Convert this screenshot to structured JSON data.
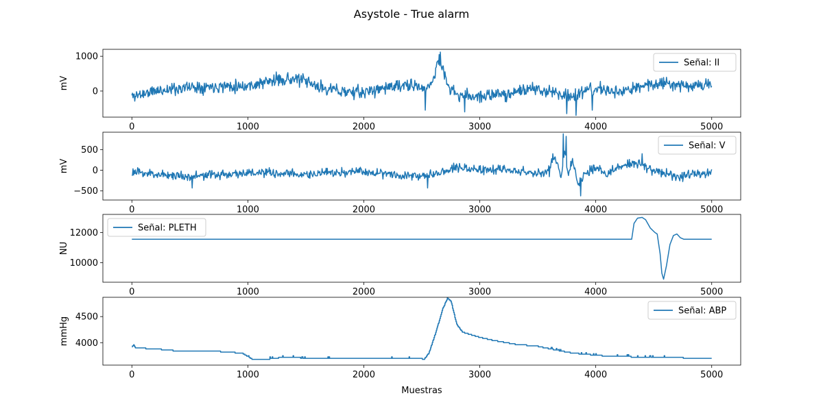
{
  "chart_data": {
    "type": "line",
    "title": "Asystole - True alarm",
    "xlabel": "Muestras",
    "color": "#1f77b4",
    "subplots": [
      {
        "ylabel": "mV",
        "legend": "Señal: II",
        "legend_loc": "upper right",
        "xlim": [
          -250,
          5250
        ],
        "ylim": [
          -750,
          1200
        ],
        "xticks": [
          0,
          1000,
          2000,
          3000,
          4000,
          5000
        ],
        "yticks": [
          0,
          1000
        ],
        "kind": "noise",
        "seed": 11,
        "noise_sd": 90,
        "keypoints": [
          [
            0,
            -150
          ],
          [
            200,
            0
          ],
          [
            500,
            120
          ],
          [
            800,
            150
          ],
          [
            1000,
            150
          ],
          [
            1150,
            250
          ],
          [
            1300,
            350
          ],
          [
            1450,
            330
          ],
          [
            1600,
            120
          ],
          [
            1800,
            0
          ],
          [
            2000,
            -50
          ],
          [
            2200,
            120
          ],
          [
            2400,
            150
          ],
          [
            2550,
            80
          ],
          [
            2600,
            350
          ],
          [
            2640,
            900
          ],
          [
            2670,
            700
          ],
          [
            2720,
            200
          ],
          [
            2800,
            -120
          ],
          [
            3000,
            -150
          ],
          [
            3200,
            -100
          ],
          [
            3400,
            50
          ],
          [
            3600,
            0
          ],
          [
            3800,
            -150
          ],
          [
            4000,
            80
          ],
          [
            4200,
            -50
          ],
          [
            4400,
            150
          ],
          [
            4600,
            250
          ],
          [
            4800,
            150
          ],
          [
            5000,
            200
          ]
        ],
        "spikes": [
          [
            2660,
            1120
          ],
          [
            2650,
            1050
          ],
          [
            2530,
            -550
          ],
          [
            2870,
            -600
          ],
          [
            3750,
            -650
          ],
          [
            3830,
            -700
          ],
          [
            3970,
            -550
          ]
        ]
      },
      {
        "ylabel": "mV",
        "legend": "Señal: V",
        "legend_loc": "upper right",
        "xlim": [
          -250,
          5250
        ],
        "ylim": [
          -720,
          920
        ],
        "xticks": [
          0,
          1000,
          2000,
          3000,
          4000,
          5000
        ],
        "yticks": [
          -500,
          0,
          500
        ],
        "kind": "noise",
        "seed": 23,
        "noise_sd": 55,
        "keypoints": [
          [
            0,
            -50
          ],
          [
            500,
            -150
          ],
          [
            1000,
            -60
          ],
          [
            1500,
            -100
          ],
          [
            2000,
            -30
          ],
          [
            2500,
            -150
          ],
          [
            2800,
            80
          ],
          [
            3000,
            0
          ],
          [
            3200,
            30
          ],
          [
            3500,
            -80
          ],
          [
            3600,
            0
          ],
          [
            3650,
            350
          ],
          [
            3700,
            -200
          ],
          [
            3730,
            500
          ],
          [
            3760,
            -150
          ],
          [
            3800,
            300
          ],
          [
            3850,
            -350
          ],
          [
            3900,
            -100
          ],
          [
            4000,
            50
          ],
          [
            4100,
            -100
          ],
          [
            4200,
            100
          ],
          [
            4350,
            180
          ],
          [
            4500,
            -20
          ],
          [
            4700,
            -150
          ],
          [
            4800,
            -100
          ],
          [
            5000,
            -80
          ]
        ],
        "spikes": [
          [
            3720,
            880
          ],
          [
            3745,
            820
          ],
          [
            3870,
            -620
          ],
          [
            3630,
            400
          ],
          [
            4400,
            400
          ],
          [
            2550,
            -430
          ],
          [
            520,
            -430
          ]
        ]
      },
      {
        "ylabel": "NU",
        "legend": "Señal: PLETH",
        "legend_loc": "upper left",
        "xlim": [
          -250,
          5250
        ],
        "ylim": [
          8700,
          13200
        ],
        "xticks": [
          0,
          1000,
          2000,
          3000,
          4000,
          5000
        ],
        "yticks": [
          10000,
          12000
        ],
        "kind": "smooth",
        "keypoints": [
          [
            0,
            11550
          ],
          [
            4310,
            11550
          ],
          [
            4330,
            12600
          ],
          [
            4360,
            12950
          ],
          [
            4400,
            13000
          ],
          [
            4430,
            12850
          ],
          [
            4470,
            12300
          ],
          [
            4510,
            12000
          ],
          [
            4530,
            11900
          ],
          [
            4555,
            10600
          ],
          [
            4570,
            9300
          ],
          [
            4585,
            8900
          ],
          [
            4610,
            9800
          ],
          [
            4640,
            11200
          ],
          [
            4670,
            11800
          ],
          [
            4700,
            11900
          ],
          [
            4730,
            11650
          ],
          [
            4760,
            11550
          ],
          [
            5000,
            11550
          ]
        ]
      },
      {
        "ylabel": "mmHg",
        "legend": "Señal: ABP",
        "legend_loc": "upper right",
        "xlim": [
          -250,
          5250
        ],
        "ylim": [
          3570,
          4870
        ],
        "xticks": [
          0,
          1000,
          2000,
          3000,
          4000,
          5000
        ],
        "yticks": [
          4000,
          4500
        ],
        "kind": "step",
        "keypoints": [
          [
            0,
            3920
          ],
          [
            15,
            3960
          ],
          [
            30,
            3900
          ],
          [
            200,
            3880
          ],
          [
            350,
            3850
          ],
          [
            700,
            3840
          ],
          [
            950,
            3800
          ],
          [
            1050,
            3670
          ],
          [
            1150,
            3680
          ],
          [
            1300,
            3720
          ],
          [
            1600,
            3700
          ],
          [
            2000,
            3690
          ],
          [
            2500,
            3690
          ],
          [
            2520,
            3680
          ],
          [
            2560,
            3800
          ],
          [
            2620,
            4200
          ],
          [
            2680,
            4650
          ],
          [
            2720,
            4850
          ],
          [
            2750,
            4800
          ],
          [
            2800,
            4350
          ],
          [
            2850,
            4200
          ],
          [
            3000,
            4100
          ],
          [
            3100,
            4050
          ],
          [
            3300,
            3970
          ],
          [
            3500,
            3930
          ],
          [
            3700,
            3840
          ],
          [
            3800,
            3800
          ],
          [
            3900,
            3780
          ],
          [
            4100,
            3740
          ],
          [
            4500,
            3720
          ],
          [
            5000,
            3700
          ],
          [
            5000,
            3630
          ]
        ]
      }
    ]
  }
}
